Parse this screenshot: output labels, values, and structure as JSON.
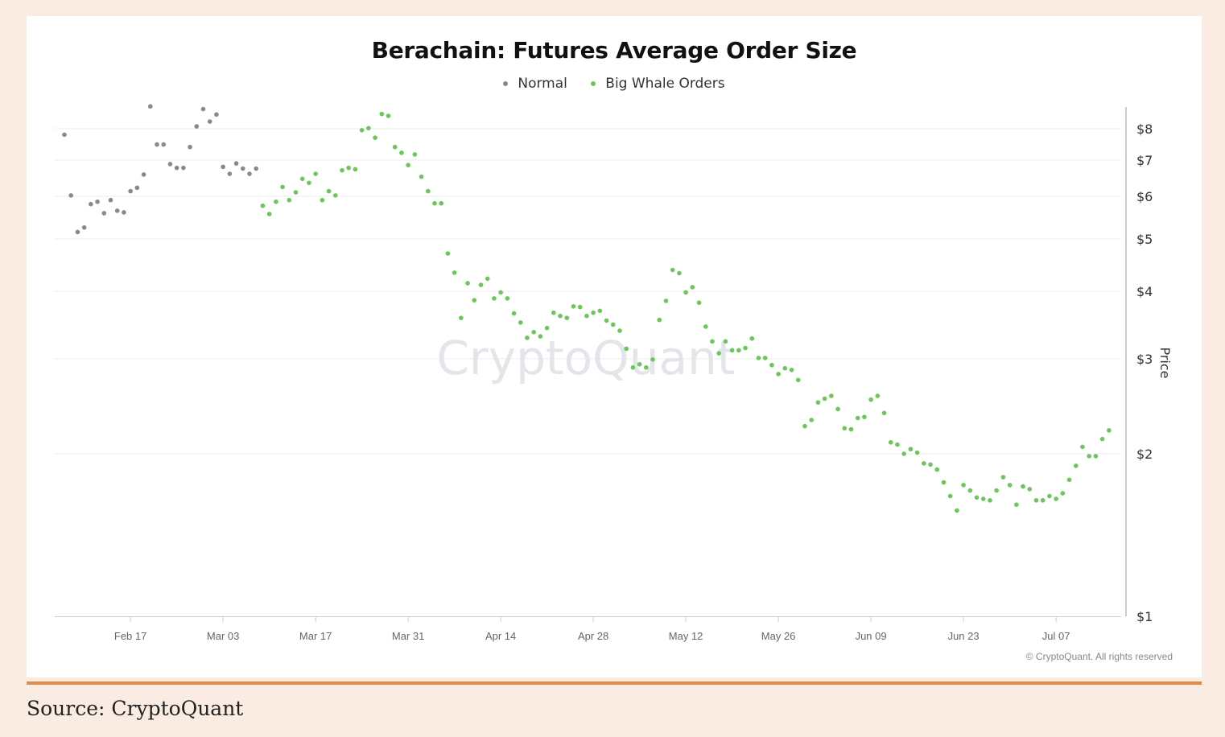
{
  "chart_data": {
    "type": "scatter",
    "title": "Berachain: Futures Average Order Size",
    "ylabel": "Price",
    "yscale": "log",
    "ylim": [
      1,
      9
    ],
    "y_ticks": [
      "$1",
      "$2",
      "$3",
      "$4",
      "$5",
      "$6",
      "$7",
      "$8"
    ],
    "y_tick_values": [
      1,
      2,
      3,
      4,
      5,
      6,
      7,
      8
    ],
    "x_start": "2025-02-07",
    "x_end": "2025-07-15",
    "x_ticks": [
      {
        "label": "Feb 17",
        "day": 10
      },
      {
        "label": "Mar 03",
        "day": 24
      },
      {
        "label": "Mar 17",
        "day": 38
      },
      {
        "label": "Mar 31",
        "day": 52
      },
      {
        "label": "Apr 14",
        "day": 66
      },
      {
        "label": "Apr 28",
        "day": 80
      },
      {
        "label": "May 12",
        "day": 94
      },
      {
        "label": "May 26",
        "day": 108
      },
      {
        "label": "Jun 09",
        "day": 122
      },
      {
        "label": "Jun 23",
        "day": 136
      },
      {
        "label": "Jul 07",
        "day": 150
      }
    ],
    "legend_position": "top-center",
    "series": [
      {
        "name": "Normal",
        "color": "#8a8790",
        "values": [
          7.8,
          6.02,
          5.15,
          5.25,
          5.8,
          5.86,
          5.58,
          5.9,
          5.64,
          5.6,
          6.13,
          6.22,
          6.58,
          8.8,
          7.48,
          7.48,
          6.88,
          6.77,
          6.77,
          7.4,
          8.08,
          8.7,
          8.25,
          8.5,
          6.8,
          6.6,
          6.9,
          6.75,
          6.6,
          6.75
        ]
      },
      {
        "name": "Big Whale Orders",
        "color": "#6cc65a",
        "values": [
          5.76,
          5.56,
          5.86,
          6.24,
          5.9,
          6.1,
          6.46,
          6.35,
          6.6,
          5.9,
          6.13,
          6.02,
          6.7,
          6.77,
          6.73,
          7.95,
          8.02,
          7.7,
          8.52,
          8.45,
          7.4,
          7.22,
          6.85,
          7.17,
          6.52,
          6.13,
          5.82,
          5.82,
          4.7,
          4.33,
          3.57,
          4.14,
          3.85,
          4.11,
          4.22,
          3.88,
          3.98,
          3.88,
          3.64,
          3.5,
          3.28,
          3.36,
          3.3,
          3.42,
          3.65,
          3.6,
          3.57,
          3.75,
          3.74,
          3.6,
          3.65,
          3.68,
          3.53,
          3.47,
          3.38,
          3.13,
          2.89,
          2.93,
          2.89,
          2.99,
          3.54,
          3.84,
          4.38,
          4.32,
          3.98,
          4.07,
          3.81,
          3.44,
          3.23,
          3.07,
          3.23,
          3.11,
          3.11,
          3.14,
          3.27,
          3.01,
          3.01,
          2.92,
          2.81,
          2.88,
          2.86,
          2.74,
          2.25,
          2.31,
          2.49,
          2.53,
          2.56,
          2.42,
          2.23,
          2.22,
          2.33,
          2.34,
          2.52,
          2.56,
          2.38,
          2.1,
          2.08,
          2.0,
          2.04,
          2.01,
          1.92,
          1.91,
          1.87,
          1.77,
          1.67,
          1.57,
          1.75,
          1.71,
          1.66,
          1.65,
          1.64,
          1.71,
          1.81,
          1.75,
          1.61,
          1.74,
          1.72,
          1.64,
          1.64,
          1.67,
          1.65,
          1.69,
          1.79,
          1.9,
          2.06,
          1.98,
          1.98,
          2.13,
          2.21
        ]
      }
    ],
    "watermark": "CryptoQuant",
    "copyright": "© CryptoQuant. All rights reserved"
  },
  "source": "Source: CryptoQuant"
}
